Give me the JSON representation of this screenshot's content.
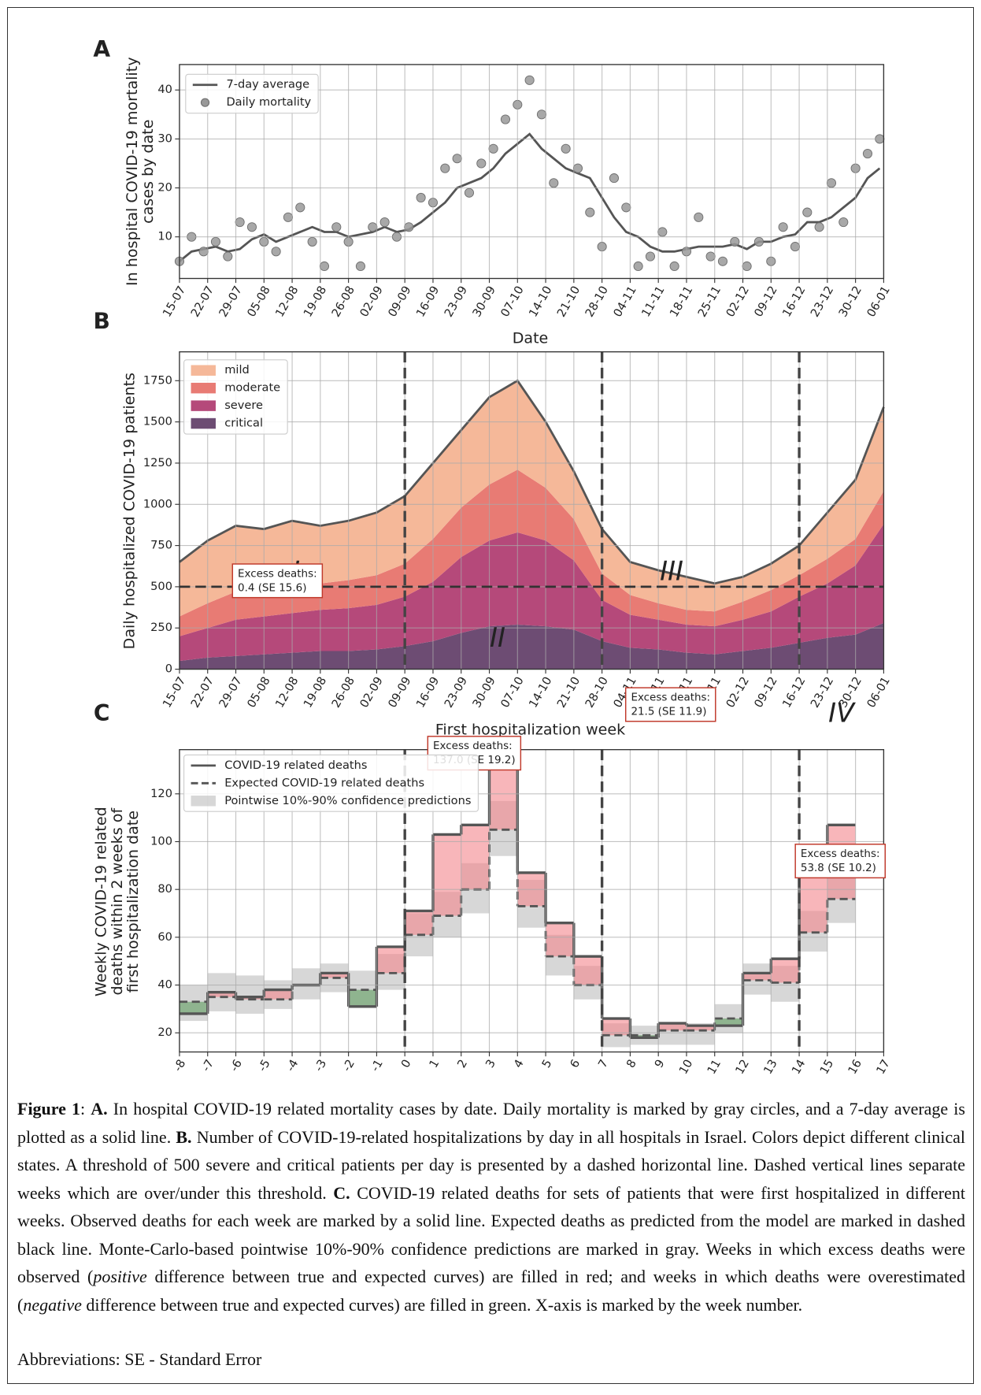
{
  "chart_data": [
    {
      "type": "line",
      "panel": "A",
      "ylabel": [
        "In hospital COVID-19 mortality",
        "cases by date"
      ],
      "xlabel": "Date",
      "x": [
        "15-07",
        "18-07",
        "21-07",
        "24-07",
        "27-07",
        "30-07",
        "02-08",
        "05-08",
        "08-08",
        "11-08",
        "14-08",
        "17-08",
        "20-08",
        "23-08",
        "26-08",
        "29-08",
        "01-09",
        "04-09",
        "07-09",
        "10-09",
        "13-09",
        "16-09",
        "19-09",
        "22-09",
        "25-09",
        "28-09",
        "01-10",
        "04-10",
        "07-10",
        "10-10",
        "13-10",
        "16-10",
        "19-10",
        "22-10",
        "25-10",
        "28-10",
        "31-10",
        "03-11",
        "06-11",
        "09-11",
        "12-11",
        "15-11",
        "18-11",
        "21-11",
        "24-11",
        "27-11",
        "30-11",
        "03-12",
        "06-12",
        "09-12",
        "12-12",
        "15-12",
        "18-12",
        "21-12",
        "24-12",
        "27-12",
        "30-12",
        "02-01",
        "05-01"
      ],
      "series": [
        {
          "name": "7-day average",
          "style": "line",
          "color": "#555555",
          "values": [
            5,
            7,
            7.5,
            8,
            7,
            7.5,
            9.5,
            10.5,
            9,
            10,
            11,
            12,
            11,
            11,
            10,
            10.5,
            11,
            12,
            11,
            11.5,
            13,
            15,
            17,
            20,
            21,
            22,
            24,
            27,
            29,
            31,
            28,
            26,
            24,
            23,
            22,
            18,
            14,
            11,
            10,
            8,
            7,
            7,
            7.5,
            8,
            8,
            8,
            8.5,
            7.5,
            9,
            9,
            10,
            10.5,
            13,
            13,
            14,
            16,
            18,
            22,
            24
          ]
        },
        {
          "name": "Daily mortality",
          "style": "scatter",
          "color": "#999999",
          "values": [
            5,
            10,
            7,
            9,
            6,
            13,
            12,
            9,
            7,
            14,
            16,
            9,
            4,
            12,
            9,
            4,
            12,
            13,
            10,
            12,
            18,
            17,
            24,
            26,
            19,
            25,
            28,
            34,
            37,
            42,
            35,
            21,
            28,
            24,
            15,
            8,
            22,
            16,
            4,
            6,
            11,
            4,
            7,
            14,
            6,
            5,
            9,
            4,
            9,
            5,
            12,
            8,
            15,
            12,
            21,
            13,
            24,
            27,
            30
          ]
        }
      ],
      "xlim": [
        "15-07",
        "06-01"
      ],
      "ylim": [
        1.5,
        45.2
      ],
      "yticks": [
        10,
        20,
        30,
        40
      ],
      "xticks": [
        "15-07",
        "22-07",
        "29-07",
        "05-08",
        "12-08",
        "19-08",
        "26-08",
        "02-09",
        "09-09",
        "16-09",
        "23-09",
        "30-09",
        "07-10",
        "14-10",
        "21-10",
        "28-10",
        "04-11",
        "11-11",
        "18-11",
        "25-11",
        "02-12",
        "09-12",
        "16-12",
        "23-12",
        "30-12",
        "06-01"
      ],
      "grid": true,
      "legend": "upper left"
    },
    {
      "type": "area",
      "panel": "B",
      "ylabel": [
        "Daily hospitalized COVID-19 patients"
      ],
      "xlabel": "First hospitalization week",
      "x": [
        "15-07",
        "22-07",
        "29-07",
        "05-08",
        "12-08",
        "19-08",
        "26-08",
        "02-09",
        "09-09",
        "16-09",
        "23-09",
        "30-09",
        "07-10",
        "14-10",
        "21-10",
        "28-10",
        "04-11",
        "11-11",
        "18-11",
        "25-11",
        "02-12",
        "09-12",
        "16-12",
        "23-12",
        "30-12",
        "06-01"
      ],
      "series": [
        {
          "name": "critical",
          "color": "#6d4c73",
          "values": [
            50,
            70,
            80,
            90,
            100,
            110,
            110,
            120,
            140,
            170,
            220,
            260,
            270,
            260,
            240,
            170,
            130,
            120,
            100,
            90,
            110,
            130,
            160,
            190,
            210,
            280
          ]
        },
        {
          "name": "severe",
          "color": "#b5497a",
          "values": [
            150,
            180,
            220,
            230,
            240,
            250,
            260,
            270,
            300,
            360,
            460,
            520,
            560,
            520,
            420,
            250,
            200,
            180,
            170,
            170,
            190,
            220,
            280,
            330,
            420,
            600
          ]
        },
        {
          "name": "moderate",
          "color": "#e87b74",
          "values": [
            120,
            150,
            170,
            160,
            170,
            160,
            170,
            180,
            200,
            260,
            300,
            340,
            380,
            320,
            250,
            160,
            120,
            100,
            90,
            90,
            110,
            130,
            130,
            150,
            160,
            200
          ]
        },
        {
          "name": "mild",
          "color": "#f5b899",
          "values": [
            330,
            380,
            400,
            370,
            390,
            350,
            360,
            380,
            410,
            460,
            470,
            530,
            540,
            400,
            290,
            270,
            200,
            200,
            200,
            170,
            150,
            160,
            180,
            280,
            360,
            510
          ]
        }
      ],
      "xlim": [
        "15-07",
        "06-01"
      ],
      "ylim": [
        0,
        1925
      ],
      "yticks": [
        0,
        250,
        500,
        750,
        1000,
        1250,
        1500,
        1750
      ],
      "xticks": [
        "15-07",
        "22-07",
        "29-07",
        "05-08",
        "12-08",
        "19-08",
        "26-08",
        "02-09",
        "09-09",
        "16-09",
        "23-09",
        "30-09",
        "07-10",
        "14-10",
        "21-10",
        "28-10",
        "04-11",
        "11-11",
        "18-11",
        "25-11",
        "02-12",
        "09-12",
        "16-12",
        "23-12",
        "30-12",
        "06-01"
      ],
      "vlines": [
        "09-09",
        "28-10",
        "16-12"
      ],
      "hline": 500,
      "grid": true,
      "legend": "upper left"
    },
    {
      "type": "step",
      "panel": "C",
      "ylabel": [
        "Weekly COVID-19 related",
        "deaths within 2 weeks of",
        "first hospitalization date"
      ],
      "x": [
        -8,
        -7,
        -6,
        -5,
        -4,
        -3,
        -2,
        -1,
        0,
        1,
        2,
        3,
        4,
        5,
        6,
        7,
        8,
        9,
        10,
        11,
        12,
        13,
        14,
        15
      ],
      "series": [
        {
          "name": "COVID-19 related deaths",
          "style": "solid",
          "color": "#555555",
          "values": [
            28,
            37,
            35,
            38,
            40,
            45,
            31,
            56,
            71,
            103,
            107,
            134,
            87,
            66,
            52,
            26,
            18,
            24,
            23,
            23,
            45,
            51,
            86,
            107
          ]
        },
        {
          "name": "Expected COVID-19 related deaths",
          "style": "dashed",
          "color": "#555555",
          "values": [
            33,
            35,
            34,
            34,
            40,
            43,
            38,
            45,
            61,
            69,
            80,
            105,
            73,
            52,
            40,
            19,
            19,
            21,
            21,
            26,
            42,
            41,
            62,
            76
          ]
        }
      ],
      "band": {
        "name": "Pointwise 10%-90% confidence predictions",
        "color": "#bdbdbd",
        "low": [
          25,
          29,
          28,
          30,
          34,
          37,
          31,
          38,
          52,
          60,
          70,
          94,
          64,
          44,
          34,
          14,
          15,
          15,
          15,
          20,
          36,
          33,
          54,
          66
        ],
        "high": [
          40,
          45,
          44,
          42,
          47,
          49,
          46,
          53,
          70,
          79,
          91,
          117,
          84,
          61,
          48,
          24,
          23,
          24,
          24,
          32,
          49,
          48,
          71,
          86
        ]
      },
      "excess_color": "#f4858c",
      "deficit_color": "#5f9d5f",
      "xlim": [
        -8,
        17
      ],
      "ylim": [
        12,
        138.5
      ],
      "yticks": [
        20,
        40,
        60,
        80,
        100,
        120
      ],
      "xticks": [
        -8,
        -7,
        -6,
        -5,
        -4,
        -3,
        -2,
        -1,
        0,
        1,
        2,
        3,
        4,
        5,
        6,
        7,
        8,
        9,
        10,
        11,
        12,
        13,
        14,
        15,
        16,
        17
      ],
      "vlines": [
        0,
        7,
        14
      ],
      "regions": [
        "I",
        "II",
        "III",
        "IV"
      ],
      "excess": [
        [
          "Excess deaths:",
          "0.4 (SE 15.6)"
        ],
        [
          "Excess deaths:",
          "137.0 (SE 19.2)"
        ],
        [
          "Excess deaths:",
          "21.5 (SE 11.9)"
        ],
        [
          "Excess deaths:",
          "53.8 (SE 10.2)"
        ]
      ],
      "grid": true,
      "legend": "upper left"
    }
  ],
  "caption": [
    {
      "text": "Figure 1",
      "style": "b"
    },
    {
      "text": ": ",
      "style": ""
    },
    {
      "text": "A.",
      "style": "b"
    },
    {
      "text": " In hospital COVID-19 related mortality cases by date. Daily mortality is marked by gray circles, and a 7-day average is plotted as a solid line. ",
      "style": ""
    },
    {
      "text": "B.",
      "style": "b"
    },
    {
      "text": " Number of COVID-19-related hospitalizations by day in all hospitals in Israel. Colors depict different clinical states. A threshold of 500 severe and critical patients per day is presented by a dashed horizontal line. Dashed vertical lines separate weeks which are over/under this threshold. ",
      "style": ""
    },
    {
      "text": "C.",
      "style": "b"
    },
    {
      "text": " COVID-19 related deaths for sets of patients that were first hospitalized in different weeks. Observed deaths for each week are marked by a solid line. Expected deaths as predicted from the model are marked in dashed black line. Monte-Carlo-based pointwise 10%-90% confidence predictions are marked in gray. Weeks in which excess deaths were observed (",
      "style": ""
    },
    {
      "text": "positive",
      "style": "i"
    },
    {
      "text": " difference between true and expected curves) are filled in red; and weeks in which deaths were overestimated (",
      "style": ""
    },
    {
      "text": "negative",
      "style": "i"
    },
    {
      "text": " difference between true and expected curves) are filled in green. X-axis is marked by the week number.",
      "style": ""
    }
  ],
  "abbreviations": "Abbreviations: SE - Standard Error"
}
